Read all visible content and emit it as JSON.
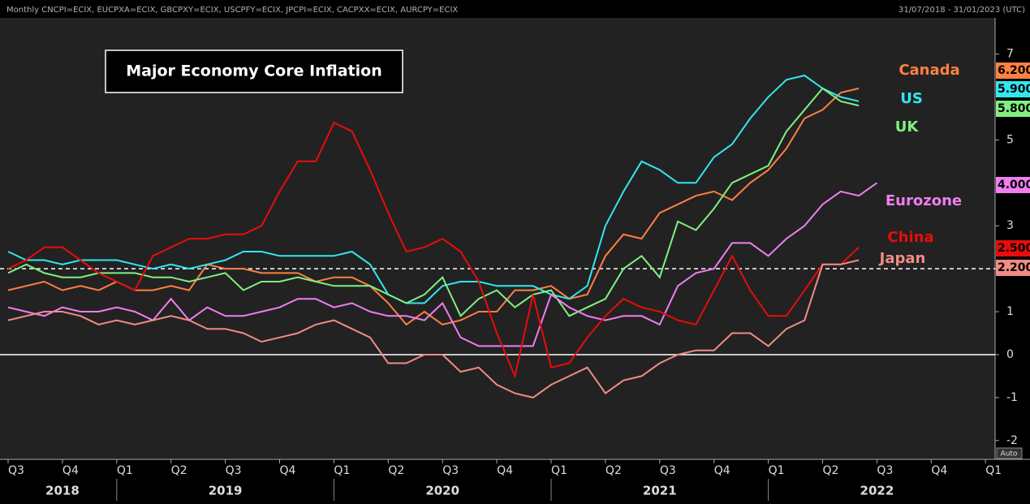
{
  "header": {
    "left": "Monthly CNCPI=ECIX, EUCPXA=ECIX, GBCPXY=ECIX, USCPFY=ECIX, JPCPI=ECIX, CACPXX=ECIX, AURCPY=ECIX",
    "right": "31/07/2018 - 31/01/2023 (UTC)",
    "button": "Auto"
  },
  "chart_data": {
    "type": "line",
    "title": "Major Economy Core Inflation",
    "quarters": [
      "Q3",
      "Q4",
      "Q1",
      "Q2",
      "Q3",
      "Q4",
      "Q1",
      "Q2",
      "Q3",
      "Q4",
      "Q1",
      "Q2",
      "Q3",
      "Q4",
      "Q1",
      "Q2",
      "Q3",
      "Q4",
      "Q1"
    ],
    "years": [
      "2018",
      "2019",
      "2020",
      "2021",
      "2022"
    ],
    "ylim": [
      -2.42,
      7.88
    ],
    "yticks": [
      -2,
      -1,
      0,
      1,
      2,
      3,
      5,
      7
    ],
    "reference_lines": [
      {
        "value": 2,
        "style": "dashed"
      },
      {
        "value": 0,
        "style": "solid"
      }
    ],
    "series": [
      {
        "name": "Canada",
        "color": "#ff8040",
        "end_label": "6.200",
        "values": [
          1.5,
          1.6,
          1.7,
          1.5,
          1.6,
          1.5,
          1.7,
          1.5,
          1.5,
          1.6,
          1.5,
          2.1,
          2.0,
          2.0,
          1.9,
          1.9,
          1.9,
          1.7,
          1.8,
          1.8,
          1.6,
          1.2,
          0.7,
          1.0,
          0.7,
          0.8,
          1.0,
          1.0,
          1.5,
          1.5,
          1.6,
          1.3,
          1.4,
          2.3,
          2.8,
          2.7,
          3.3,
          3.5,
          3.7,
          3.8,
          3.6,
          4.0,
          4.3,
          4.8,
          5.5,
          5.7,
          6.1,
          6.2,
          null
        ]
      },
      {
        "name": "US",
        "color": "#33e6f0",
        "end_label": "5.900",
        "values": [
          2.4,
          2.2,
          2.2,
          2.1,
          2.2,
          2.2,
          2.2,
          2.1,
          2.0,
          2.1,
          2.0,
          2.1,
          2.2,
          2.4,
          2.4,
          2.3,
          2.3,
          2.3,
          2.3,
          2.4,
          2.1,
          1.4,
          1.2,
          1.2,
          1.6,
          1.7,
          1.7,
          1.6,
          1.6,
          1.6,
          1.4,
          1.3,
          1.6,
          3.0,
          3.8,
          4.5,
          4.3,
          4.0,
          4.0,
          4.6,
          4.9,
          5.5,
          6.0,
          6.4,
          6.5,
          6.2,
          6.0,
          5.9,
          null
        ]
      },
      {
        "name": "UK",
        "color": "#80f080",
        "end_label": "5.800",
        "values": [
          1.9,
          2.1,
          1.9,
          1.8,
          1.8,
          1.9,
          1.9,
          1.9,
          1.8,
          1.8,
          1.7,
          1.8,
          1.9,
          1.5,
          1.7,
          1.7,
          1.8,
          1.7,
          1.6,
          1.6,
          1.6,
          1.4,
          1.2,
          1.4,
          1.8,
          0.9,
          1.3,
          1.5,
          1.1,
          1.4,
          1.5,
          0.9,
          1.1,
          1.3,
          2.0,
          2.3,
          1.8,
          3.1,
          2.9,
          3.4,
          4.0,
          4.2,
          4.4,
          5.2,
          5.7,
          6.2,
          5.9,
          5.8,
          null
        ]
      },
      {
        "name": "Eurozone",
        "color": "#f07ef0",
        "end_label": "4.000",
        "values": [
          1.1,
          1.0,
          0.9,
          1.1,
          1.0,
          1.0,
          1.1,
          1.0,
          0.8,
          1.3,
          0.8,
          1.1,
          0.9,
          0.9,
          1.0,
          1.1,
          1.3,
          1.3,
          1.1,
          1.2,
          1.0,
          0.9,
          0.9,
          0.8,
          1.2,
          0.4,
          0.2,
          0.2,
          0.2,
          0.2,
          1.4,
          1.1,
          0.9,
          0.8,
          0.9,
          0.9,
          0.7,
          1.6,
          1.9,
          2.0,
          2.6,
          2.6,
          2.3,
          2.7,
          3.0,
          3.5,
          3.8,
          3.7,
          4.0
        ]
      },
      {
        "name": "China",
        "color": "#e80c0c",
        "end_label": "2.500",
        "values": [
          2.0,
          2.2,
          2.5,
          2.5,
          2.2,
          1.9,
          1.7,
          1.5,
          2.3,
          2.5,
          2.7,
          2.7,
          2.8,
          2.8,
          3.0,
          3.8,
          4.5,
          4.5,
          5.4,
          5.2,
          4.3,
          3.3,
          2.4,
          2.5,
          2.7,
          2.4,
          1.7,
          0.5,
          -0.5,
          1.4,
          -0.3,
          -0.2,
          0.4,
          0.9,
          1.3,
          1.1,
          1.0,
          0.8,
          0.7,
          1.5,
          2.3,
          1.5,
          0.9,
          0.9,
          1.5,
          2.1,
          2.1,
          2.5,
          null
        ]
      },
      {
        "name": "Japan",
        "color": "#f08c84",
        "end_label": "2.200",
        "values": [
          0.8,
          0.9,
          1.0,
          1.0,
          0.9,
          0.7,
          0.8,
          0.7,
          0.8,
          0.9,
          0.8,
          0.6,
          0.6,
          0.5,
          0.3,
          0.4,
          0.5,
          0.7,
          0.8,
          0.6,
          0.4,
          -0.2,
          -0.2,
          0.0,
          0.0,
          -0.4,
          -0.3,
          -0.7,
          -0.9,
          -1.0,
          -0.7,
          -0.5,
          -0.3,
          -0.9,
          -0.6,
          -0.5,
          -0.2,
          0.0,
          0.1,
          0.1,
          0.5,
          0.5,
          0.2,
          0.6,
          0.8,
          2.1,
          2.1,
          2.2,
          null
        ]
      }
    ]
  }
}
